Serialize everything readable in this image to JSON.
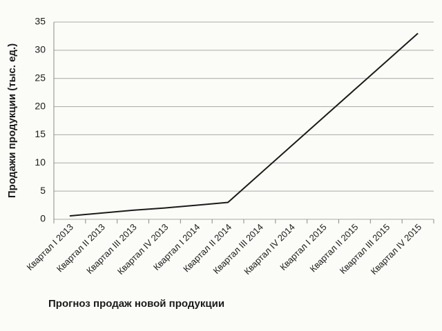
{
  "chart_data": {
    "type": "line",
    "y_label": "Продажи продукции (тыс. ед.)",
    "x_label": "Прогноз продаж новой продукции",
    "categories": [
      "Квартал I 2013",
      "Квартал II 2013",
      "Квартал III 2013",
      "Квартал IV 2013",
      "Квартал I 2014",
      "Квартал II 2014",
      "Квартал III 2014",
      "Квартал IV 2014",
      "Квартал I 2015",
      "Квартал II 2015",
      "Квартал III 2015",
      "Квартал IV 2015"
    ],
    "values": [
      0.6,
      1.1,
      1.6,
      2.0,
      2.5,
      3.0,
      8.0,
      13.0,
      18.0,
      23.0,
      28.0,
      33.0
    ],
    "color": "#1a1a1a",
    "ylim": [
      0,
      35
    ],
    "yticks": [
      0,
      5,
      10,
      15,
      20,
      25,
      30,
      35
    ],
    "grid": true
  }
}
